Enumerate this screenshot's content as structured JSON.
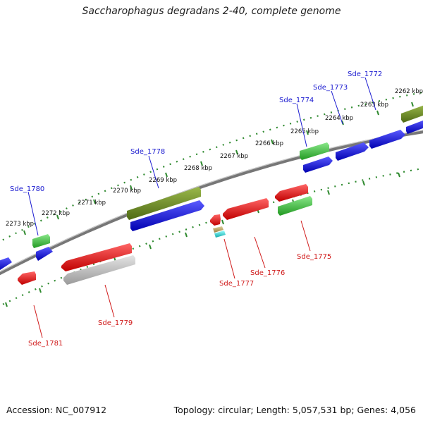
{
  "title": "Saccharophagus degradans 2-40, complete genome",
  "footer": {
    "accession": "Accession: NC_007912",
    "summary": "Topology: circular; Length: 5,057,531 bp; Genes: 4,056"
  },
  "colors": {
    "backbone": "#888888",
    "ruler": "#2f8a2f",
    "label_forward": "#1a1ad0",
    "label_reverse": "#d01a1a",
    "kbp_text": "#111111",
    "gene_blue": "#1111dd",
    "gene_green": "#33bb33",
    "gene_olive": "#6b8a23",
    "gene_red": "#ee1111",
    "gene_gray": "#b8b8b8",
    "gene_tan": "#c8b070",
    "gene_cyan": "#22dddd"
  },
  "kbp_labels": [
    "2273 kbp",
    "2272 kbp",
    "2271 kbp",
    "2270 kbp",
    "2269 kbp",
    "2268 kbp",
    "2267 kbp",
    "2266 kbp",
    "2265 kbp",
    "2264 kbp",
    "2263 kbp",
    "2262 kbp"
  ],
  "forward_genes": [
    {
      "label": "Sde_1780"
    },
    {
      "label": "Sde_1778"
    },
    {
      "label": "Sde_1774"
    },
    {
      "label": "Sde_1773"
    },
    {
      "label": "Sde_1772"
    }
  ],
  "reverse_genes": [
    {
      "label": "Sde_1781"
    },
    {
      "label": "Sde_1779"
    },
    {
      "label": "Sde_1777"
    },
    {
      "label": "Sde_1776"
    },
    {
      "label": "Sde_1775"
    }
  ]
}
